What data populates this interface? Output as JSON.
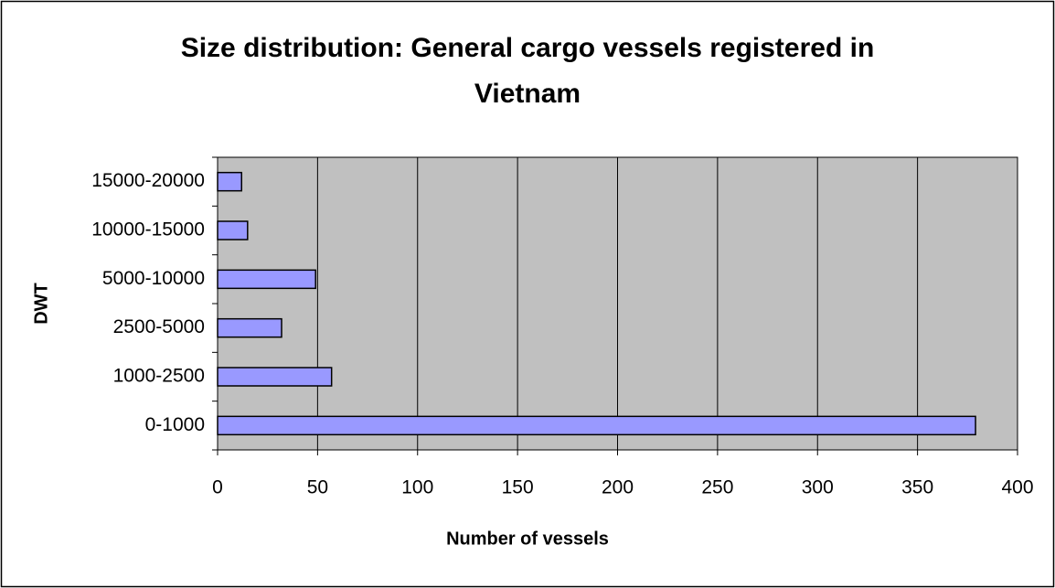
{
  "chart_data": {
    "type": "bar",
    "orientation": "horizontal",
    "title": "Size distribution: General cargo vessels registered in Vietnam",
    "x_label": "Number of vessels",
    "y_label": "DWT",
    "categories": [
      "0-1000",
      "1000-2500",
      "2500-5000",
      "5000-10000",
      "10000-15000",
      "15000-20000"
    ],
    "values": [
      379,
      57,
      32,
      49,
      15,
      12
    ],
    "color": "#9999ff",
    "xlim": [
      0,
      400
    ],
    "xticks": [
      0,
      50,
      100,
      150,
      200,
      250,
      300,
      350,
      400
    ],
    "grid": true
  }
}
